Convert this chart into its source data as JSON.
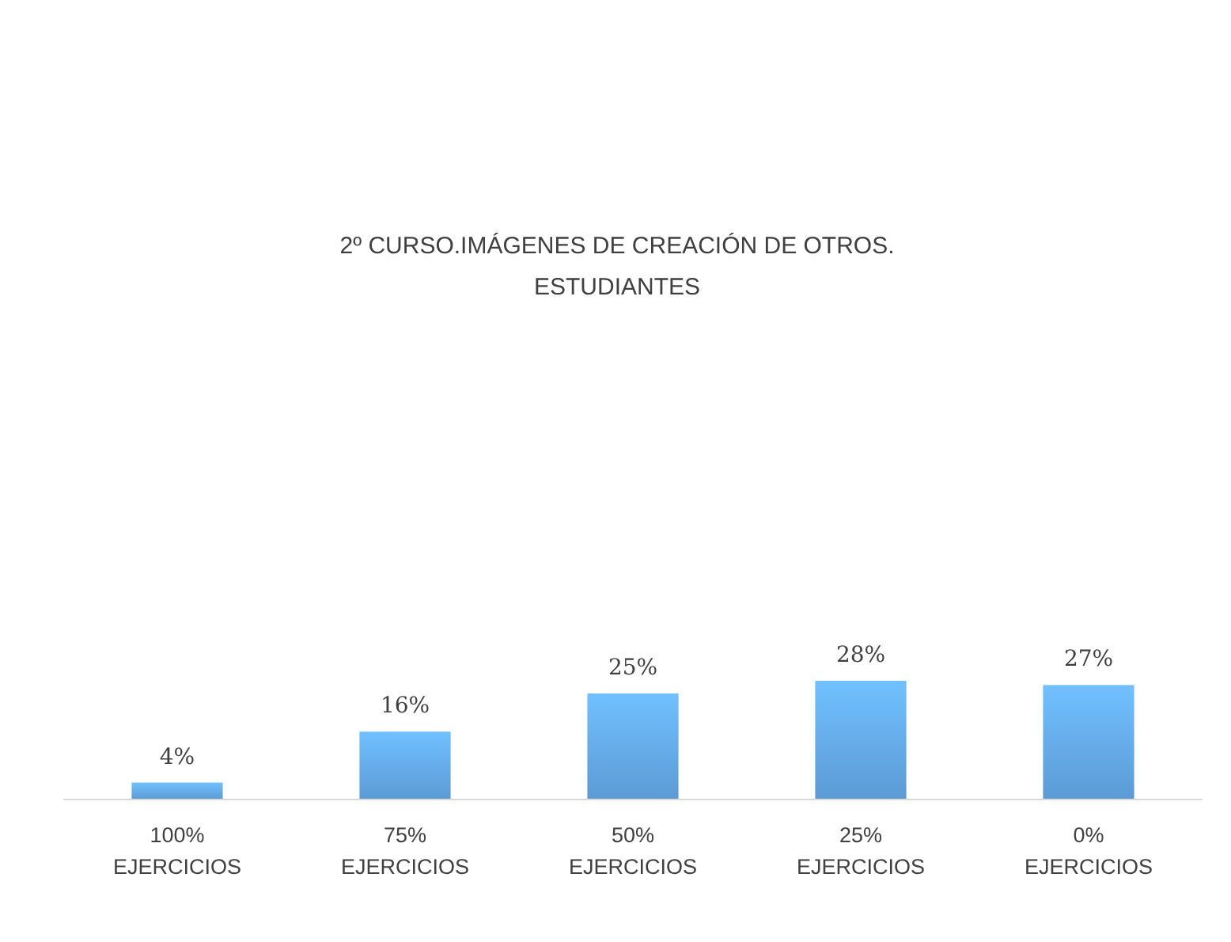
{
  "chart_data": {
    "type": "bar",
    "title": "2º CURSO.IMÁGENES  DE CREACIÓN DE OTROS.\nESTUDIANTES",
    "categories": [
      "100% EJERCICIOS",
      "75% EJERCICIOS",
      "50% EJERCICIOS",
      "25% EJERCICIOS",
      "0% EJERCICIOS"
    ],
    "values": [
      4,
      16,
      25,
      28,
      27
    ],
    "color": "#5b9bd5",
    "data_labels": true,
    "value_labels": [
      "4%",
      "16%",
      "25%",
      "28%",
      "27%"
    ]
  }
}
